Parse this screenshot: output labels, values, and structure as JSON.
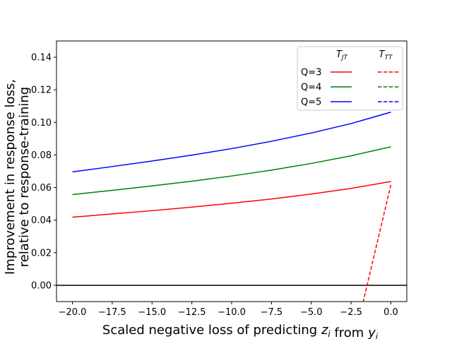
{
  "chart_data": {
    "type": "line",
    "xlabel": "Scaled negative loss of predicting z_i from y_i",
    "ylabel_lines": [
      "Improvement in response loss,",
      "relative to response-training"
    ],
    "xlim": [
      -21.0,
      1.0
    ],
    "ylim": [
      -0.01,
      0.15
    ],
    "x_ticks": [
      -20.0,
      -17.5,
      -15.0,
      -12.5,
      -10.0,
      -7.5,
      -5.0,
      -2.5,
      0.0
    ],
    "x_tick_labels": [
      "−20.0",
      "−17.5",
      "−15.0",
      "−12.5",
      "−10.0",
      "−7.5",
      "−5.0",
      "−2.5",
      "0.0"
    ],
    "y_ticks": [
      0.0,
      0.02,
      0.04,
      0.06,
      0.08,
      0.1,
      0.12,
      0.14
    ],
    "y_tick_labels": [
      "0.00",
      "0.02",
      "0.04",
      "0.06",
      "0.08",
      "0.10",
      "0.12",
      "0.14"
    ],
    "reference_line_y": 0.0,
    "legend": {
      "placement": "top-right",
      "col_headers": [
        {
          "main": "T",
          "sub": "JT"
        },
        {
          "main": "T",
          "sub": "TT"
        }
      ],
      "rows": [
        "Q=3",
        "Q=4",
        "Q=5"
      ]
    },
    "series": [
      {
        "name": "Q=3",
        "model": "T_JT",
        "style": "solid",
        "color": "#ff0000",
        "x": [
          -20,
          -17.5,
          -15,
          -12.5,
          -10,
          -7.5,
          -5,
          -2.5,
          0
        ],
        "y": [
          0.0418,
          0.0438,
          0.0458,
          0.048,
          0.0504,
          0.053,
          0.056,
          0.0595,
          0.0637
        ]
      },
      {
        "name": "Q=4",
        "model": "T_JT",
        "style": "solid",
        "color": "#008000",
        "x": [
          -20,
          -17.5,
          -15,
          -12.5,
          -10,
          -7.5,
          -5,
          -2.5,
          0
        ],
        "y": [
          0.0557,
          0.0583,
          0.061,
          0.0639,
          0.0671,
          0.0707,
          0.0748,
          0.0795,
          0.085
        ]
      },
      {
        "name": "Q=5",
        "model": "T_JT",
        "style": "solid",
        "color": "#0000ff",
        "x": [
          -20,
          -17.5,
          -15,
          -12.5,
          -10,
          -7.5,
          -5,
          -2.5,
          0
        ],
        "y": [
          0.0696,
          0.0729,
          0.0763,
          0.0799,
          0.0839,
          0.0884,
          0.0935,
          0.0993,
          0.1063
        ]
      },
      {
        "name": "Q=3",
        "model": "T_TT",
        "style": "dashed",
        "color": "#ff0000",
        "x": [
          -1.75,
          0
        ],
        "y": [
          -0.0105,
          0.0617
        ]
      }
    ]
  }
}
